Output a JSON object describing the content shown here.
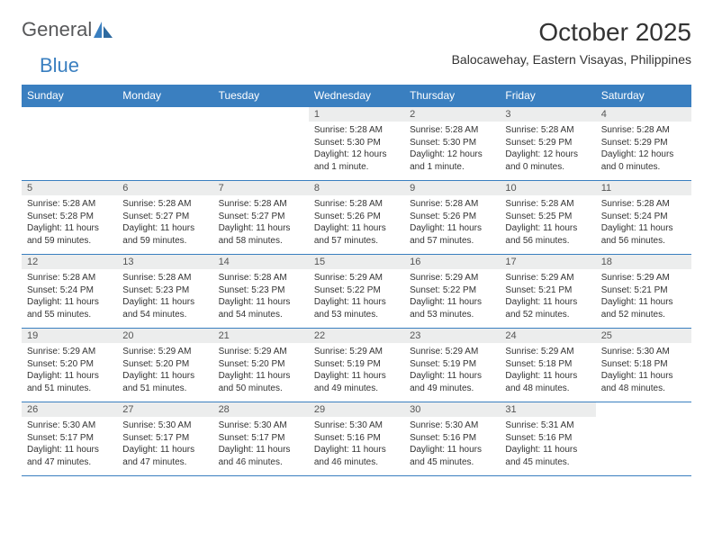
{
  "logo": {
    "text1": "General",
    "text2": "Blue"
  },
  "title": "October 2025",
  "location": "Balocawehay, Eastern Visayas, Philippines",
  "colors": {
    "header_bg": "#3a7fc0",
    "header_text": "#ffffff",
    "daynum_bg": "#eceded",
    "border": "#3a7fc0",
    "text": "#333333",
    "logo_gray": "#57585a",
    "logo_blue": "#3a7fc0"
  },
  "weekdays": [
    "Sunday",
    "Monday",
    "Tuesday",
    "Wednesday",
    "Thursday",
    "Friday",
    "Saturday"
  ],
  "grid": [
    [
      {
        "day": "",
        "lines": []
      },
      {
        "day": "",
        "lines": []
      },
      {
        "day": "",
        "lines": []
      },
      {
        "day": "1",
        "lines": [
          "Sunrise: 5:28 AM",
          "Sunset: 5:30 PM",
          "Daylight: 12 hours and 1 minute."
        ]
      },
      {
        "day": "2",
        "lines": [
          "Sunrise: 5:28 AM",
          "Sunset: 5:30 PM",
          "Daylight: 12 hours and 1 minute."
        ]
      },
      {
        "day": "3",
        "lines": [
          "Sunrise: 5:28 AM",
          "Sunset: 5:29 PM",
          "Daylight: 12 hours and 0 minutes."
        ]
      },
      {
        "day": "4",
        "lines": [
          "Sunrise: 5:28 AM",
          "Sunset: 5:29 PM",
          "Daylight: 12 hours and 0 minutes."
        ]
      }
    ],
    [
      {
        "day": "5",
        "lines": [
          "Sunrise: 5:28 AM",
          "Sunset: 5:28 PM",
          "Daylight: 11 hours and 59 minutes."
        ]
      },
      {
        "day": "6",
        "lines": [
          "Sunrise: 5:28 AM",
          "Sunset: 5:27 PM",
          "Daylight: 11 hours and 59 minutes."
        ]
      },
      {
        "day": "7",
        "lines": [
          "Sunrise: 5:28 AM",
          "Sunset: 5:27 PM",
          "Daylight: 11 hours and 58 minutes."
        ]
      },
      {
        "day": "8",
        "lines": [
          "Sunrise: 5:28 AM",
          "Sunset: 5:26 PM",
          "Daylight: 11 hours and 57 minutes."
        ]
      },
      {
        "day": "9",
        "lines": [
          "Sunrise: 5:28 AM",
          "Sunset: 5:26 PM",
          "Daylight: 11 hours and 57 minutes."
        ]
      },
      {
        "day": "10",
        "lines": [
          "Sunrise: 5:28 AM",
          "Sunset: 5:25 PM",
          "Daylight: 11 hours and 56 minutes."
        ]
      },
      {
        "day": "11",
        "lines": [
          "Sunrise: 5:28 AM",
          "Sunset: 5:24 PM",
          "Daylight: 11 hours and 56 minutes."
        ]
      }
    ],
    [
      {
        "day": "12",
        "lines": [
          "Sunrise: 5:28 AM",
          "Sunset: 5:24 PM",
          "Daylight: 11 hours and 55 minutes."
        ]
      },
      {
        "day": "13",
        "lines": [
          "Sunrise: 5:28 AM",
          "Sunset: 5:23 PM",
          "Daylight: 11 hours and 54 minutes."
        ]
      },
      {
        "day": "14",
        "lines": [
          "Sunrise: 5:28 AM",
          "Sunset: 5:23 PM",
          "Daylight: 11 hours and 54 minutes."
        ]
      },
      {
        "day": "15",
        "lines": [
          "Sunrise: 5:29 AM",
          "Sunset: 5:22 PM",
          "Daylight: 11 hours and 53 minutes."
        ]
      },
      {
        "day": "16",
        "lines": [
          "Sunrise: 5:29 AM",
          "Sunset: 5:22 PM",
          "Daylight: 11 hours and 53 minutes."
        ]
      },
      {
        "day": "17",
        "lines": [
          "Sunrise: 5:29 AM",
          "Sunset: 5:21 PM",
          "Daylight: 11 hours and 52 minutes."
        ]
      },
      {
        "day": "18",
        "lines": [
          "Sunrise: 5:29 AM",
          "Sunset: 5:21 PM",
          "Daylight: 11 hours and 52 minutes."
        ]
      }
    ],
    [
      {
        "day": "19",
        "lines": [
          "Sunrise: 5:29 AM",
          "Sunset: 5:20 PM",
          "Daylight: 11 hours and 51 minutes."
        ]
      },
      {
        "day": "20",
        "lines": [
          "Sunrise: 5:29 AM",
          "Sunset: 5:20 PM",
          "Daylight: 11 hours and 51 minutes."
        ]
      },
      {
        "day": "21",
        "lines": [
          "Sunrise: 5:29 AM",
          "Sunset: 5:20 PM",
          "Daylight: 11 hours and 50 minutes."
        ]
      },
      {
        "day": "22",
        "lines": [
          "Sunrise: 5:29 AM",
          "Sunset: 5:19 PM",
          "Daylight: 11 hours and 49 minutes."
        ]
      },
      {
        "day": "23",
        "lines": [
          "Sunrise: 5:29 AM",
          "Sunset: 5:19 PM",
          "Daylight: 11 hours and 49 minutes."
        ]
      },
      {
        "day": "24",
        "lines": [
          "Sunrise: 5:29 AM",
          "Sunset: 5:18 PM",
          "Daylight: 11 hours and 48 minutes."
        ]
      },
      {
        "day": "25",
        "lines": [
          "Sunrise: 5:30 AM",
          "Sunset: 5:18 PM",
          "Daylight: 11 hours and 48 minutes."
        ]
      }
    ],
    [
      {
        "day": "26",
        "lines": [
          "Sunrise: 5:30 AM",
          "Sunset: 5:17 PM",
          "Daylight: 11 hours and 47 minutes."
        ]
      },
      {
        "day": "27",
        "lines": [
          "Sunrise: 5:30 AM",
          "Sunset: 5:17 PM",
          "Daylight: 11 hours and 47 minutes."
        ]
      },
      {
        "day": "28",
        "lines": [
          "Sunrise: 5:30 AM",
          "Sunset: 5:17 PM",
          "Daylight: 11 hours and 46 minutes."
        ]
      },
      {
        "day": "29",
        "lines": [
          "Sunrise: 5:30 AM",
          "Sunset: 5:16 PM",
          "Daylight: 11 hours and 46 minutes."
        ]
      },
      {
        "day": "30",
        "lines": [
          "Sunrise: 5:30 AM",
          "Sunset: 5:16 PM",
          "Daylight: 11 hours and 45 minutes."
        ]
      },
      {
        "day": "31",
        "lines": [
          "Sunrise: 5:31 AM",
          "Sunset: 5:16 PM",
          "Daylight: 11 hours and 45 minutes."
        ]
      },
      {
        "day": "",
        "lines": []
      }
    ]
  ]
}
